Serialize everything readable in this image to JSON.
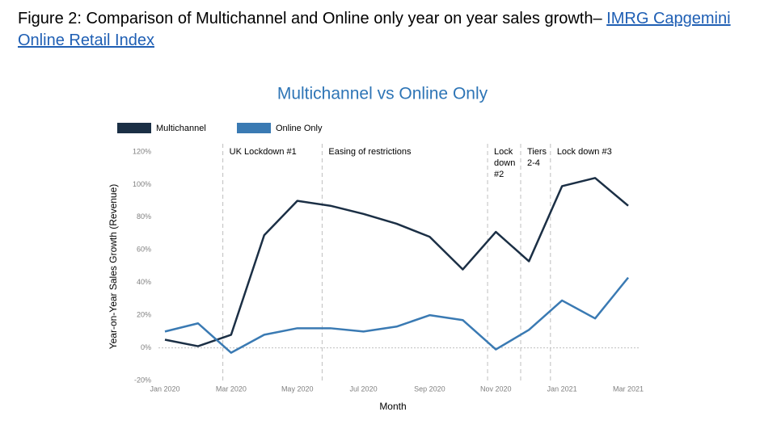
{
  "header": {
    "text": "Figure 2: Comparison of Multichannel and Online only year on year sales growth– ",
    "link": "IMRG Capgemini Online Retail Index"
  },
  "chart_data": {
    "type": "line",
    "title": "Multichannel vs Online Only",
    "x_label": "Month",
    "y_label": "Year-on-Year Sales Growth (Revenue)",
    "categories": [
      "Jan 2020",
      null,
      "Mar 2020",
      null,
      "May 2020",
      null,
      "Jul 2020",
      null,
      "Sep 2020",
      null,
      "Nov 2020",
      null,
      "Jan 2021",
      null,
      "Mar 2021"
    ],
    "series": [
      {
        "name": "Multichannel",
        "color": "#1b2f45",
        "values": [
          5,
          1,
          8,
          69,
          90,
          87,
          82,
          76,
          68,
          48,
          71,
          53,
          99,
          104,
          87
        ]
      },
      {
        "name": "Online Only",
        "color": "#3a7ab3",
        "values": [
          10,
          15,
          -3,
          8,
          12,
          12,
          10,
          13,
          20,
          17,
          -1,
          11,
          29,
          18,
          43
        ]
      }
    ],
    "ylim": [
      -20,
      120
    ],
    "yticks": [
      {
        "value": -20,
        "label": "-20%"
      },
      {
        "value": 0,
        "label": "0%"
      },
      {
        "value": 20,
        "label": "20%"
      },
      {
        "value": 40,
        "label": "40%"
      },
      {
        "value": 60,
        "label": "60%"
      },
      {
        "value": 80,
        "label": "80%"
      },
      {
        "value": 100,
        "label": "100%"
      },
      {
        "value": 120,
        "label": "120%"
      }
    ],
    "grid": false,
    "legend": "top-left",
    "annotations": [
      {
        "x": 1.75,
        "lines": [
          "UK Lockdown #1"
        ]
      },
      {
        "x": 4.75,
        "lines": [
          "Easing of restrictions"
        ]
      },
      {
        "x": 9.75,
        "lines": [
          "Lock",
          "down",
          "#2"
        ]
      },
      {
        "x": 10.75,
        "lines": [
          "Tiers",
          "2-4"
        ]
      },
      {
        "x": 11.65,
        "lines": [
          "Lock down #3"
        ]
      }
    ]
  }
}
